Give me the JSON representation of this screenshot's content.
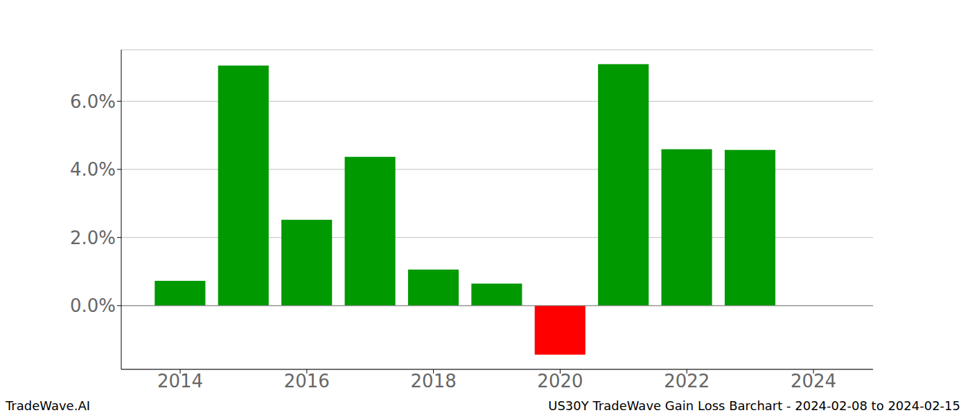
{
  "chart_data": {
    "type": "bar",
    "x": [
      2014,
      2015,
      2016,
      2017,
      2018,
      2019,
      2020,
      2021,
      2022,
      2023
    ],
    "values": [
      0.73,
      7.05,
      2.52,
      4.37,
      1.06,
      0.65,
      -1.44,
      7.09,
      4.59,
      4.57
    ],
    "colors": [
      "#009900",
      "#009900",
      "#009900",
      "#009900",
      "#009900",
      "#009900",
      "#ff0000",
      "#009900",
      "#009900",
      "#009900"
    ],
    "xlim": [
      2013.07,
      2024.94
    ],
    "xticks": [
      2014,
      2016,
      2018,
      2020,
      2022,
      2024
    ],
    "ylim": [
      -1.87,
      7.51
    ],
    "yticks": [
      {
        "value": 0,
        "label": "0.0%"
      },
      {
        "value": 2,
        "label": "2.0%"
      },
      {
        "value": 4,
        "label": "4.0%"
      },
      {
        "value": 6,
        "label": "6.0%"
      }
    ],
    "grid": true,
    "annotations": [
      "TradeWave.AI",
      "US30Y TradeWave Gain Loss Barchart - 2024-02-08 to 2024-02-15"
    ]
  }
}
